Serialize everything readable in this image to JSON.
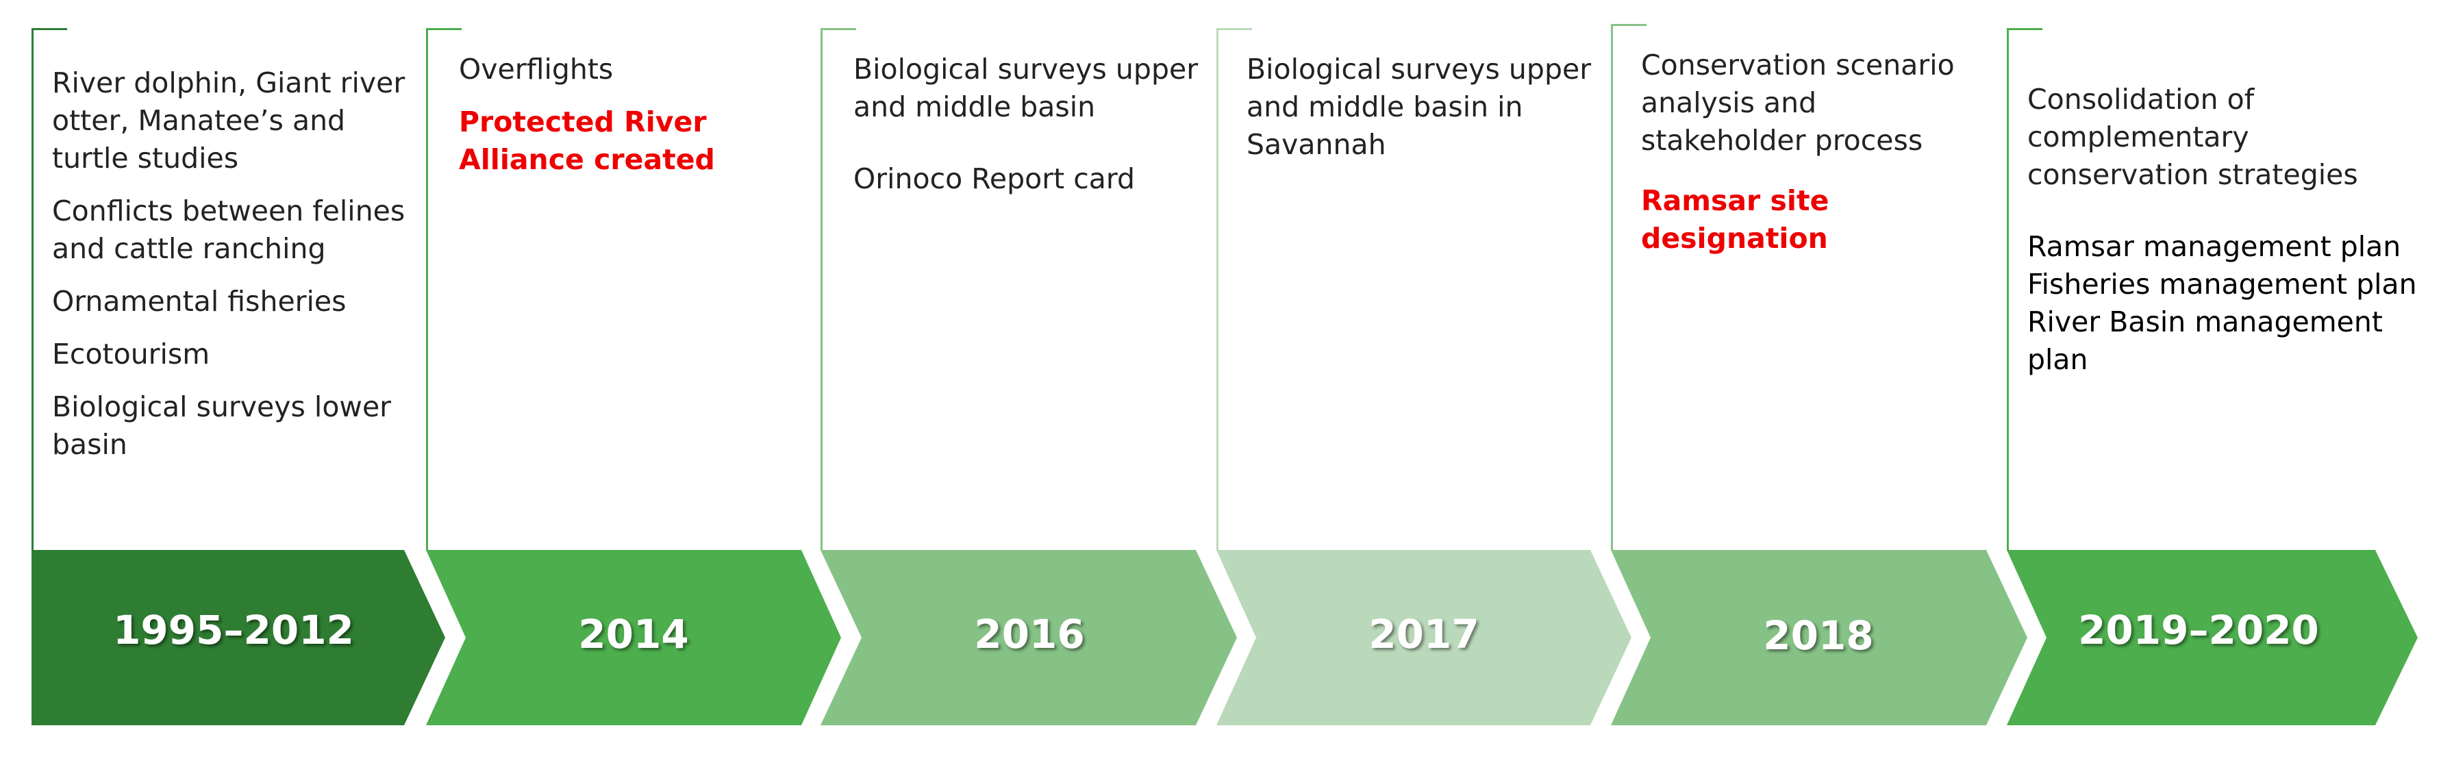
{
  "timeline": [
    {
      "year": "1995–2012",
      "fill": "#2e7d32",
      "bracket_color": "#2e7d32",
      "items": [
        {
          "text": "River dolphin, Giant river otter, Manatee’s and turtle studies",
          "style": "normal"
        },
        {
          "text": "Conflicts between felines and cattle ranching",
          "style": "normal"
        },
        {
          "text": "Ornamental fisheries",
          "style": "normal"
        },
        {
          "text": "Ecotourism",
          "style": "normal"
        },
        {
          "text": "Biological surveys lower basin",
          "style": "normal"
        }
      ]
    },
    {
      "year": "2014",
      "fill": "#4cae4c",
      "bracket_color": "#4cae4c",
      "items": [
        {
          "text": "Overflights",
          "style": "normal"
        },
        {
          "text": "Protected River Alliance created",
          "style": "highlight"
        }
      ]
    },
    {
      "year": "2016",
      "fill": "#86c286",
      "bracket_color": "#86c286",
      "items": [
        {
          "text": "Biological surveys upper and middle basin",
          "style": "normal"
        },
        {
          "text": "Orinoco Report card",
          "style": "normal"
        }
      ]
    },
    {
      "year": "2017",
      "fill": "#bad9ba",
      "bracket_color": "#bad9ba",
      "items": [
        {
          "text": "Biological surveys upper and middle basin in Savannah",
          "style": "normal"
        }
      ]
    },
    {
      "year": "2018",
      "fill": "#86c286",
      "bracket_color": "#86c286",
      "items": [
        {
          "text": "Conservation scenario analysis and stakeholder process",
          "style": "normal"
        },
        {
          "text": "Ramsar site designation",
          "style": "highlight"
        }
      ]
    },
    {
      "year": "2019–2020",
      "fill": "#4cae4c",
      "bracket_color": "#4cae4c",
      "items": [
        {
          "text": "Consolidation of complementary conservation strategies",
          "style": "normal"
        },
        {
          "text": "Ramsar management plan",
          "style": "plan"
        },
        {
          "text": "Fisheries management plan",
          "style": "plan"
        },
        {
          "text": "River Basin management plan",
          "style": "plan"
        }
      ]
    }
  ]
}
